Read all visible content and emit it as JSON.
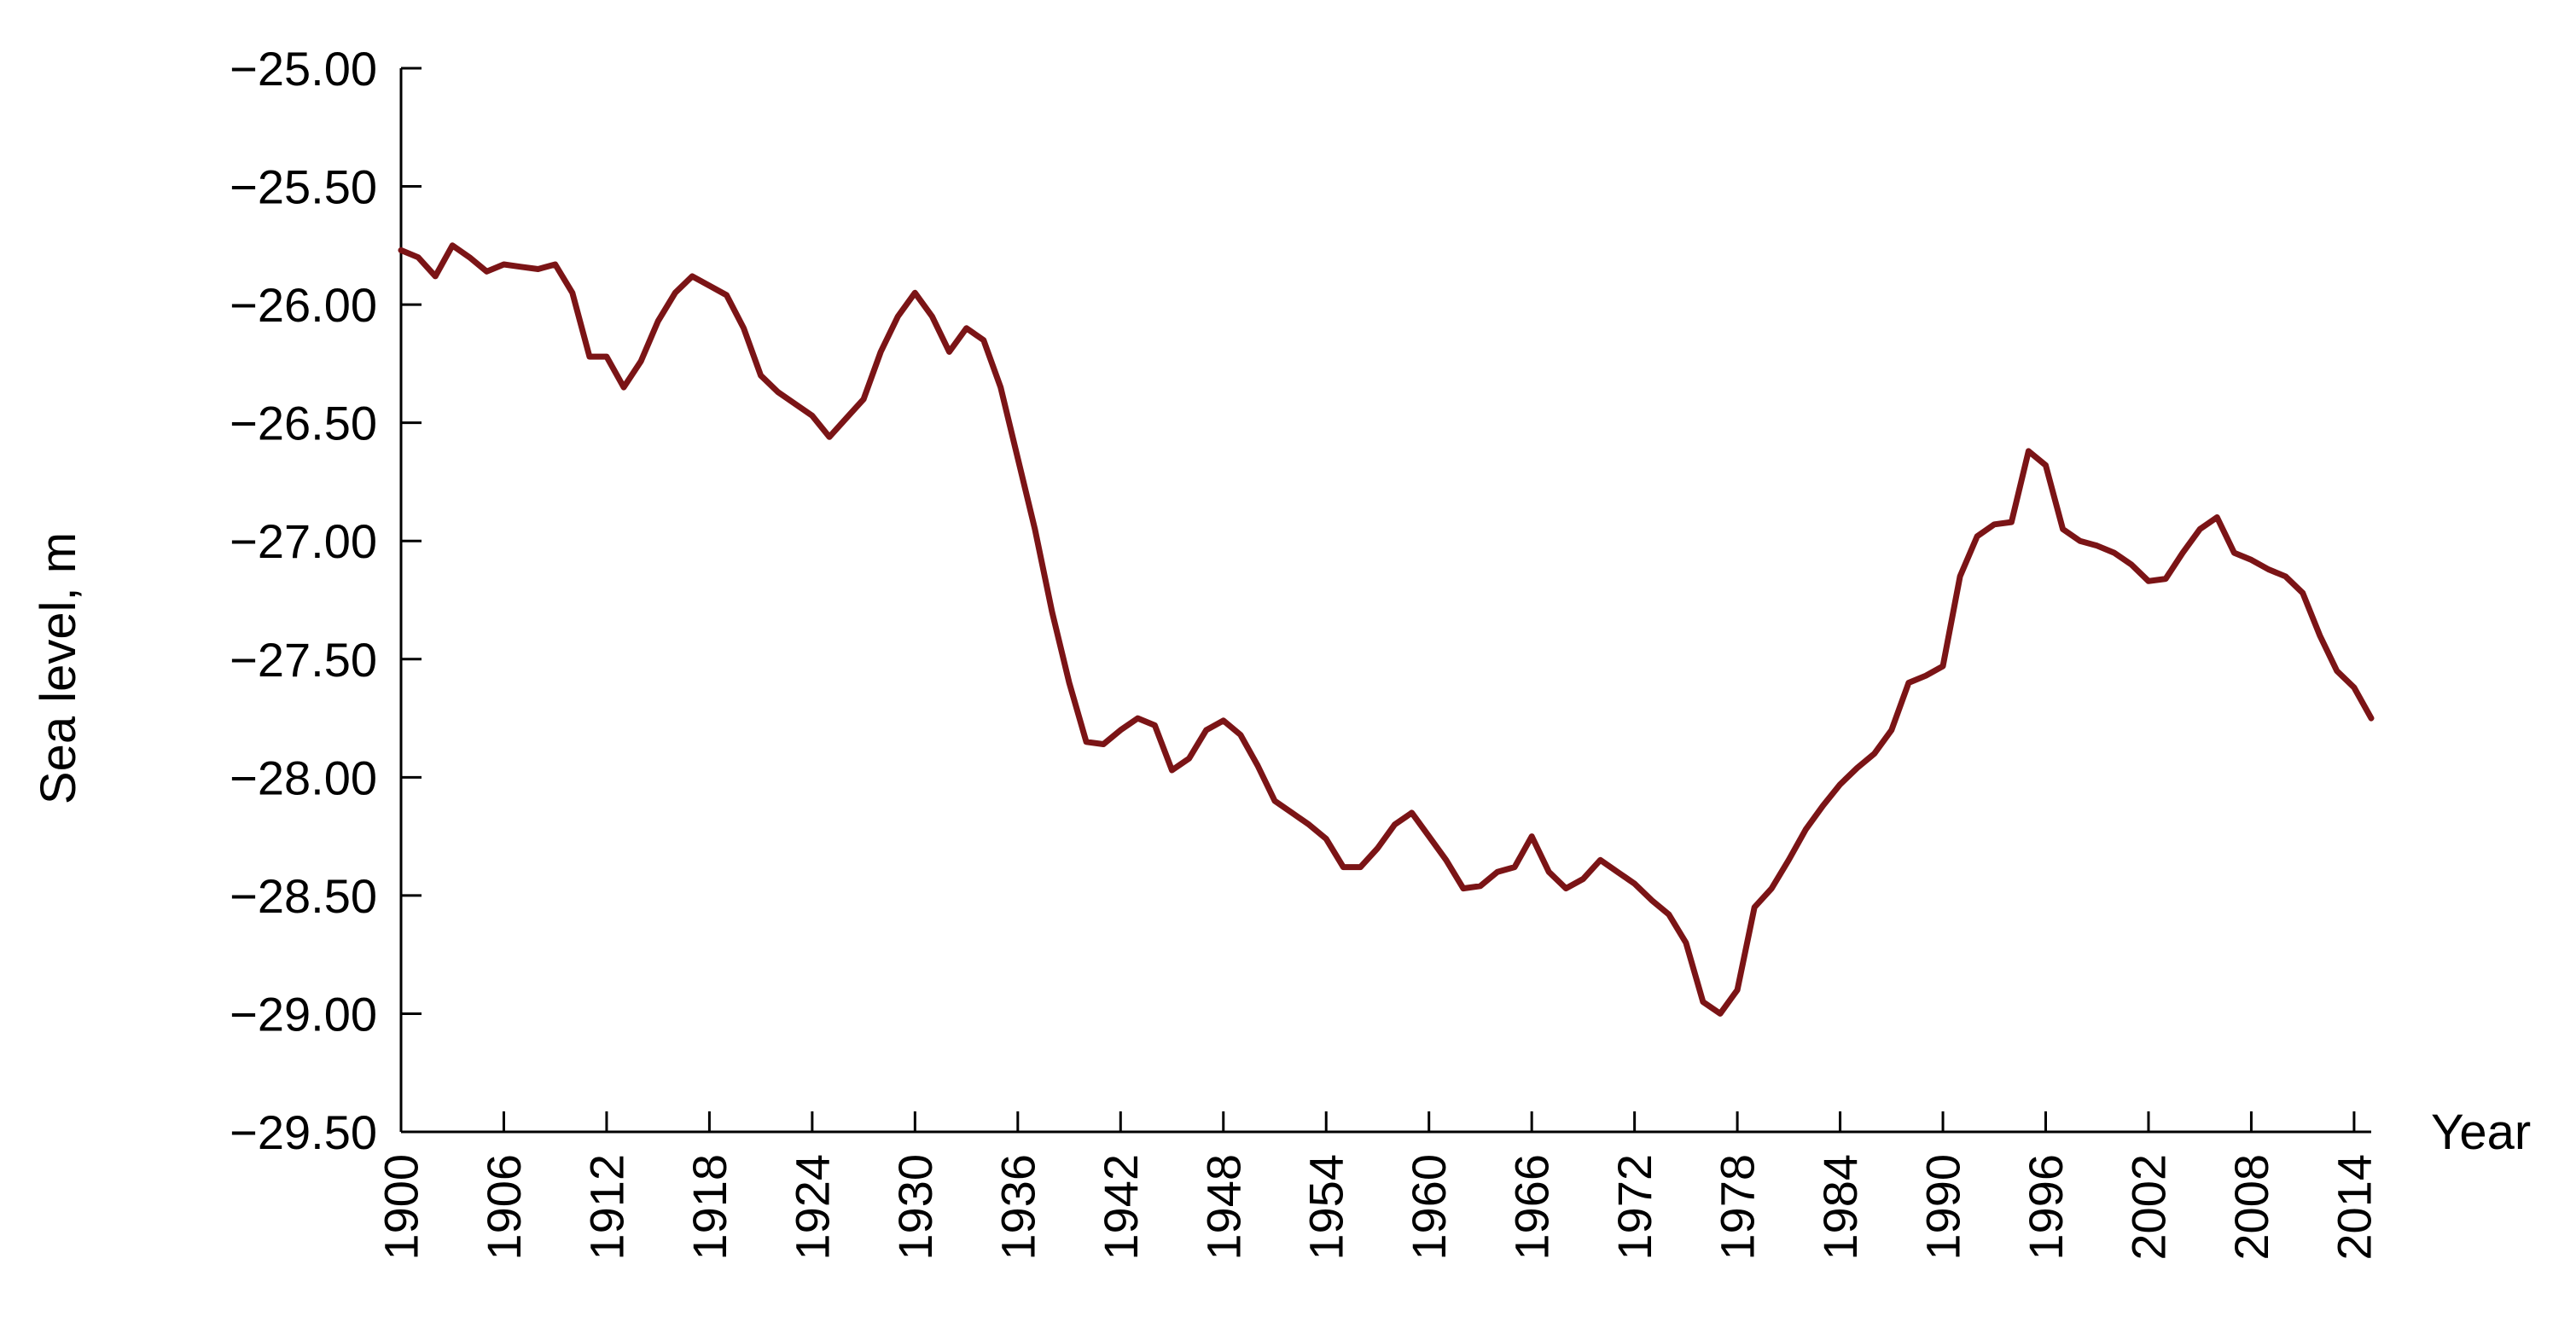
{
  "chart_data": {
    "type": "line",
    "title": "",
    "xlabel": "Year",
    "ylabel": "Sea level, m",
    "xlim": [
      1900,
      2015
    ],
    "ylim": [
      -29.5,
      -25.0
    ],
    "grid": false,
    "legend": "none",
    "line_color": "#7b1416",
    "y_ticks": [
      {
        "value": -25.0,
        "label": "−25.00"
      },
      {
        "value": -25.5,
        "label": "−25.50"
      },
      {
        "value": -26.0,
        "label": "−26.00"
      },
      {
        "value": -26.5,
        "label": "−26.50"
      },
      {
        "value": -27.0,
        "label": "−27.00"
      },
      {
        "value": -27.5,
        "label": "−27.50"
      },
      {
        "value": -28.0,
        "label": "−28.00"
      },
      {
        "value": -28.5,
        "label": "−28.50"
      },
      {
        "value": -29.0,
        "label": "−29.00"
      },
      {
        "value": -29.5,
        "label": "−29.50"
      }
    ],
    "x_ticks": [
      {
        "value": 1900,
        "label": "1900"
      },
      {
        "value": 1906,
        "label": "1906"
      },
      {
        "value": 1912,
        "label": "1912"
      },
      {
        "value": 1918,
        "label": "1918"
      },
      {
        "value": 1924,
        "label": "1924"
      },
      {
        "value": 1930,
        "label": "1930"
      },
      {
        "value": 1936,
        "label": "1936"
      },
      {
        "value": 1942,
        "label": "1942"
      },
      {
        "value": 1948,
        "label": "1948"
      },
      {
        "value": 1954,
        "label": "1954"
      },
      {
        "value": 1960,
        "label": "1960"
      },
      {
        "value": 1966,
        "label": "1966"
      },
      {
        "value": 1972,
        "label": "1972"
      },
      {
        "value": 1978,
        "label": "1978"
      },
      {
        "value": 1984,
        "label": "1984"
      },
      {
        "value": 1990,
        "label": "1990"
      },
      {
        "value": 1996,
        "label": "1996"
      },
      {
        "value": 2002,
        "label": "2002"
      },
      {
        "value": 2008,
        "label": "2008"
      },
      {
        "value": 2014,
        "label": "2014"
      }
    ],
    "series": [
      {
        "x": [
          1900,
          1901,
          1902,
          1903,
          1904,
          1905,
          1906,
          1907,
          1908,
          1909,
          1910,
          1911,
          1912,
          1913,
          1914,
          1915,
          1916,
          1917,
          1918,
          1919,
          1920,
          1921,
          1922,
          1923,
          1924,
          1925,
          1926,
          1927,
          1928,
          1929,
          1930,
          1931,
          1932,
          1933,
          1934,
          1935,
          1936,
          1937,
          1938,
          1939,
          1940,
          1941,
          1942,
          1943,
          1944,
          1945,
          1946,
          1947,
          1948,
          1949,
          1950,
          1951,
          1952,
          1953,
          1954,
          1955,
          1956,
          1957,
          1958,
          1959,
          1960,
          1961,
          1962,
          1963,
          1964,
          1965,
          1966,
          1967,
          1968,
          1969,
          1970,
          1971,
          1972,
          1973,
          1974,
          1975,
          1976,
          1977,
          1978,
          1979,
          1980,
          1981,
          1982,
          1983,
          1984,
          1985,
          1986,
          1987,
          1988,
          1989,
          1990,
          1991,
          1992,
          1993,
          1994,
          1995,
          1996,
          1997,
          1998,
          1999,
          2000,
          2001,
          2002,
          2003,
          2004,
          2005,
          2006,
          2007,
          2008,
          2009,
          2010,
          2011,
          2012,
          2013,
          2014,
          2015
        ],
        "y": [
          -25.77,
          -25.8,
          -25.88,
          -25.75,
          -25.8,
          -25.86,
          -25.83,
          -25.84,
          -25.85,
          -25.83,
          -25.95,
          -26.22,
          -26.22,
          -26.35,
          -26.24,
          -26.07,
          -25.95,
          -25.88,
          -25.92,
          -25.96,
          -26.1,
          -26.3,
          -26.37,
          -26.42,
          -26.47,
          -26.56,
          -26.48,
          -26.4,
          -26.2,
          -26.05,
          -25.95,
          -26.05,
          -26.2,
          -26.1,
          -26.15,
          -26.35,
          -26.65,
          -26.95,
          -27.3,
          -27.6,
          -27.85,
          -27.86,
          -27.8,
          -27.75,
          -27.78,
          -27.97,
          -27.92,
          -27.8,
          -27.76,
          -27.82,
          -27.95,
          -28.1,
          -28.15,
          -28.2,
          -28.26,
          -28.38,
          -28.38,
          -28.3,
          -28.2,
          -28.15,
          -28.25,
          -28.35,
          -28.47,
          -28.46,
          -28.4,
          -28.38,
          -28.25,
          -28.4,
          -28.47,
          -28.43,
          -28.35,
          -28.4,
          -28.45,
          -28.52,
          -28.58,
          -28.7,
          -28.95,
          -29.0,
          -28.9,
          -28.55,
          -28.47,
          -28.35,
          -28.22,
          -28.12,
          -28.03,
          -27.96,
          -27.9,
          -27.8,
          -27.6,
          -27.57,
          -27.53,
          -27.15,
          -26.98,
          -26.93,
          -26.92,
          -26.62,
          -26.68,
          -26.95,
          -27.0,
          -27.02,
          -27.05,
          -27.1,
          -27.17,
          -27.16,
          -27.05,
          -26.95,
          -26.9,
          -27.05,
          -27.08,
          -27.12,
          -27.15,
          -27.22,
          -27.4,
          -27.55,
          -27.62,
          -27.75
        ]
      }
    ]
  }
}
